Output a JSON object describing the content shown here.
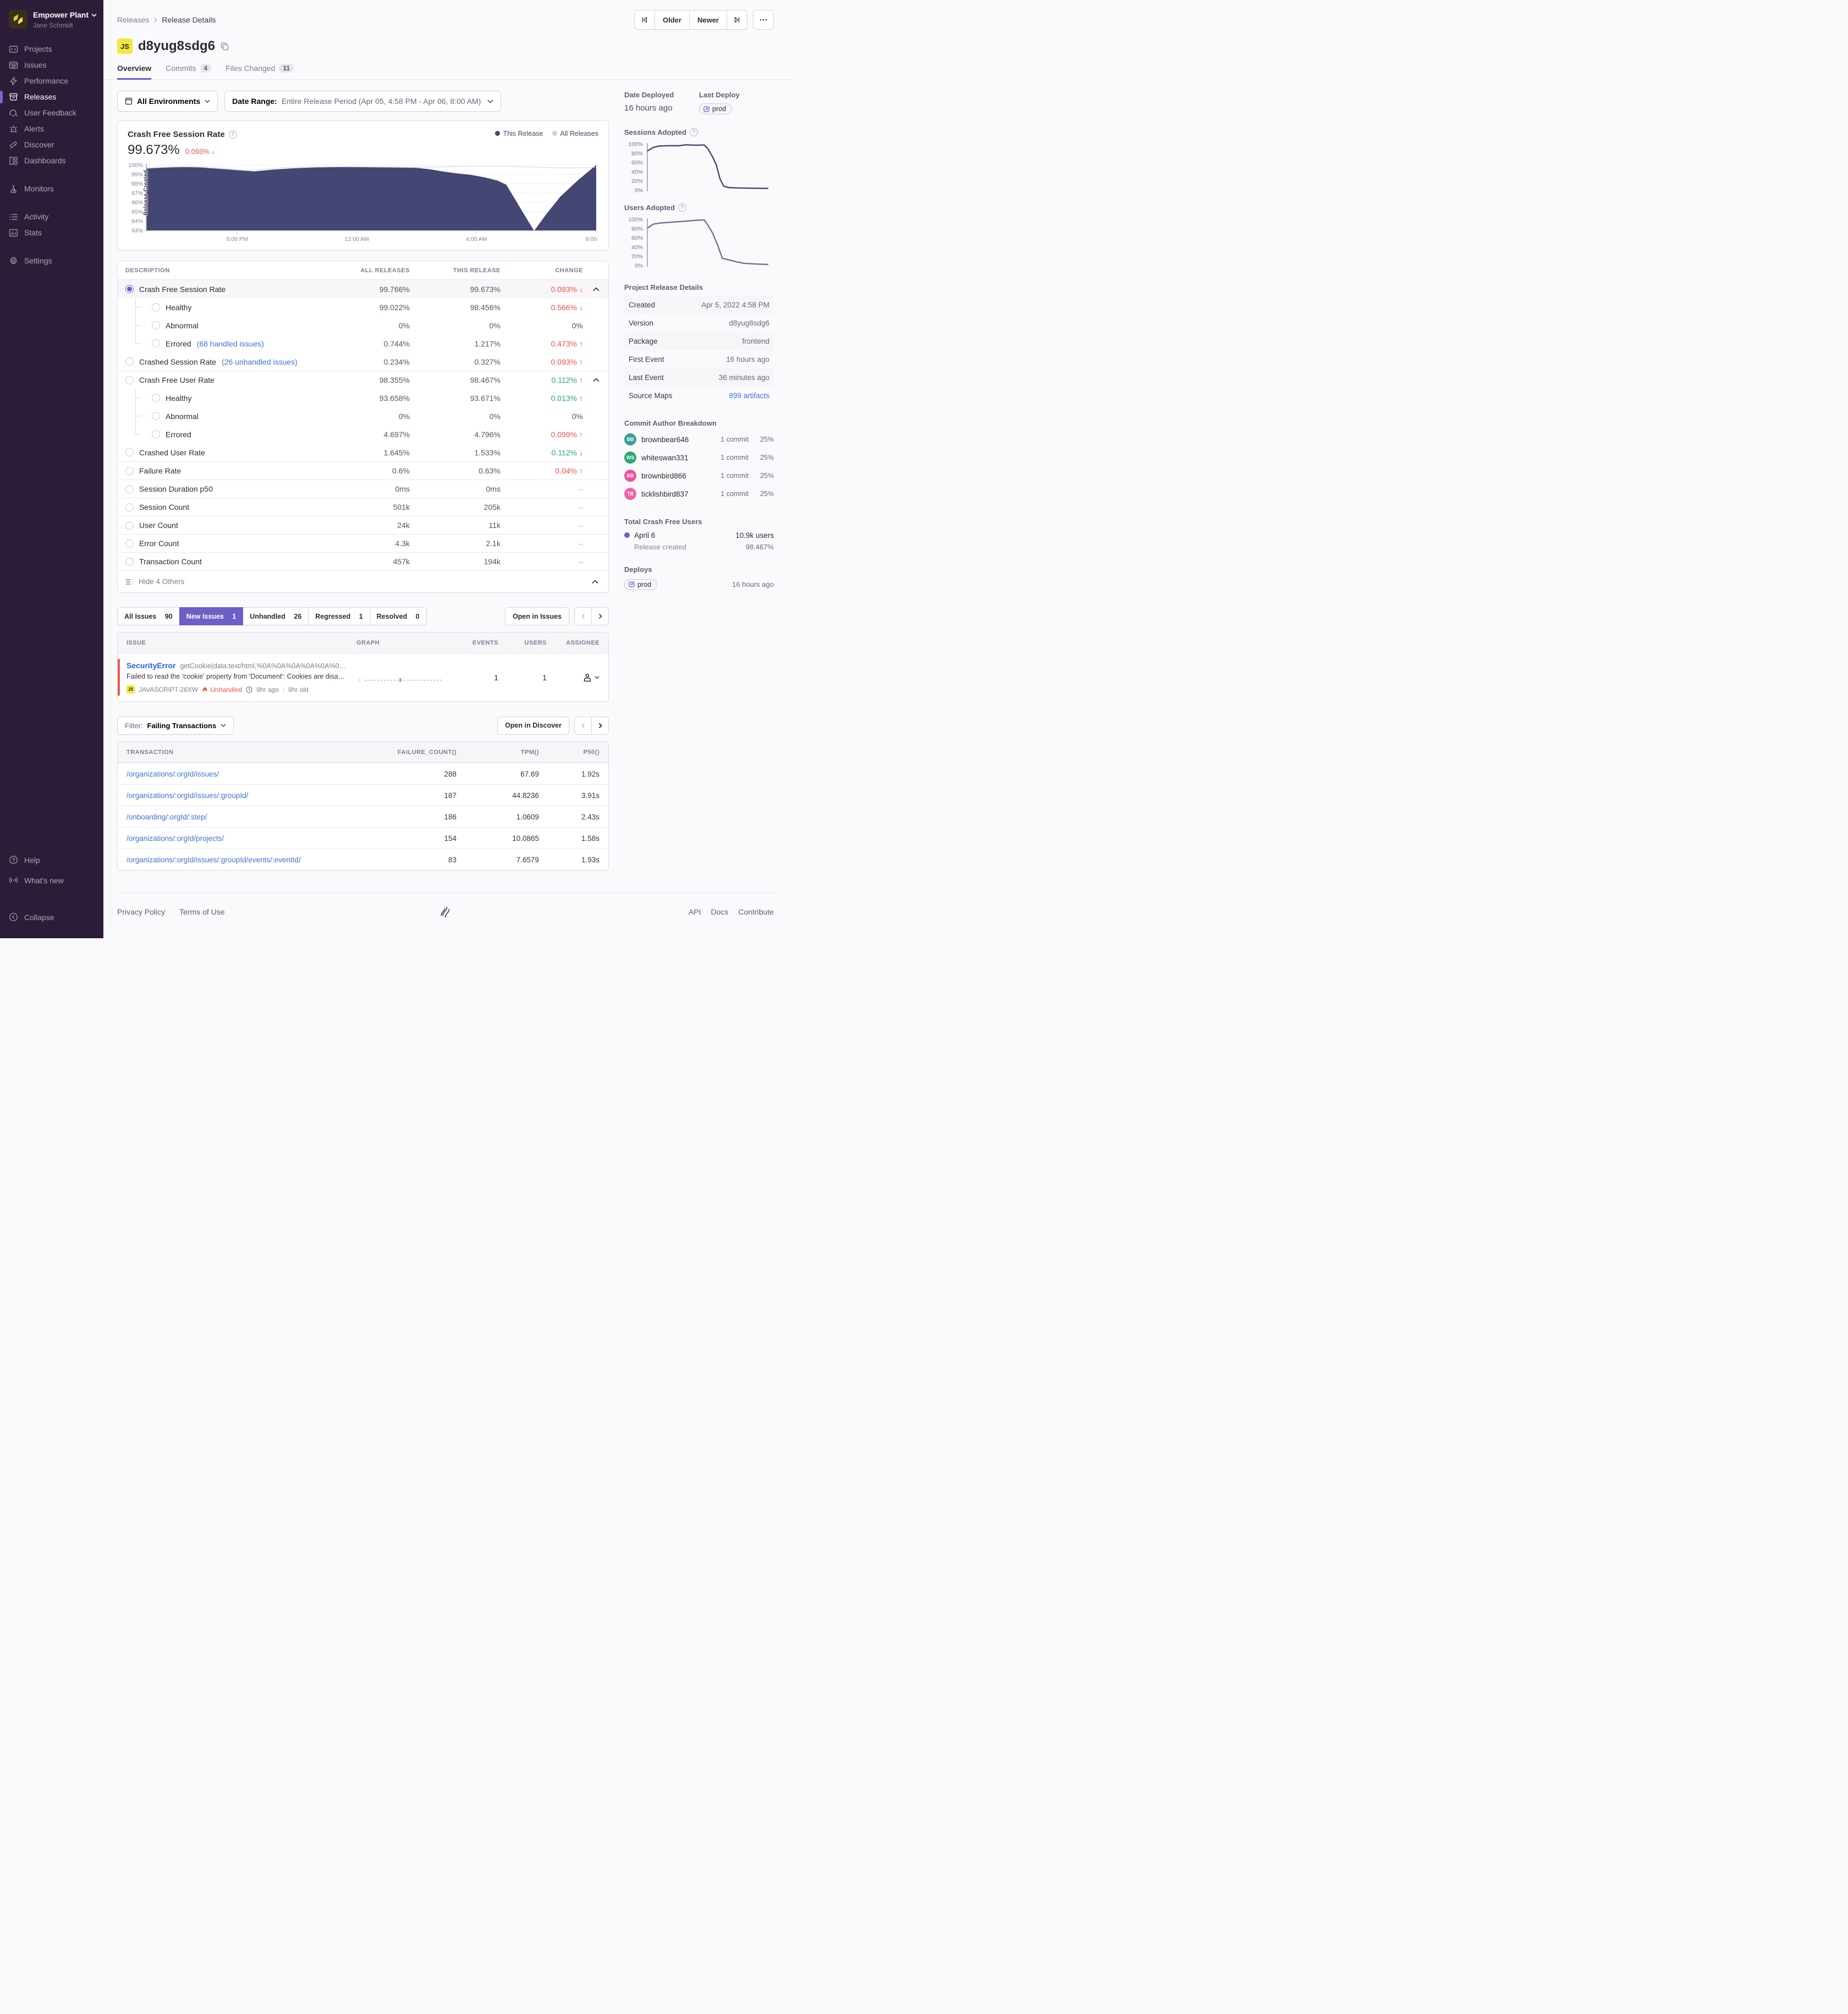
{
  "sidebar": {
    "org": "Empower Plant",
    "user": "Jane Schmidt",
    "nav1": [
      "Projects",
      "Issues",
      "Performance",
      "Releases",
      "User Feedback",
      "Alerts",
      "Discover",
      "Dashboards"
    ],
    "nav2": [
      "Monitors"
    ],
    "nav3": [
      "Activity",
      "Stats"
    ],
    "nav4": [
      "Settings"
    ],
    "bottom": [
      "Help",
      "What's new",
      "Collapse"
    ]
  },
  "header": {
    "breadcrumb1": "Releases",
    "breadcrumb2": "Release Details",
    "older": "Older",
    "newer": "Newer",
    "title": "d8yug8sdg6",
    "title_badge": "JS",
    "tabs": [
      {
        "label": "Overview"
      },
      {
        "label": "Commits",
        "count": "4"
      },
      {
        "label": "Files Changed",
        "count": "11"
      }
    ]
  },
  "filters": {
    "environments": "All Environments",
    "range_label": "Date Range:",
    "range_value": "Entire Release Period (Apr 05, 4:58 PM - Apr 06, 8:00 AM)"
  },
  "chart_card": {
    "title": "Crash Free Session Rate",
    "value": "99.673%",
    "change": "0.093%",
    "change_arrow": "↓",
    "legend1": "This Release",
    "legend2": "All Releases",
    "annotation": "Release Created"
  },
  "chart_data": [
    {
      "id": "main-chart",
      "type": "area",
      "title": "Crash Free Session Rate",
      "ylabel": "%",
      "ylim": [
        93,
        100
      ],
      "yticks": [
        100,
        99,
        98,
        97,
        96,
        95,
        94,
        93
      ],
      "xticks": [
        {
          "f": 0.202,
          "label": "8:00 PM"
        },
        {
          "f": 0.468,
          "label": "12:00 AM"
        },
        {
          "f": 0.734,
          "label": "4:00 AM"
        },
        {
          "f": 1.0,
          "label": "8:00 AM"
        }
      ],
      "legend_position": "top-right",
      "grid": true,
      "series": [
        {
          "name": "This Release",
          "style": "area",
          "color": "#444674",
          "points": [
            [
              0,
              99.62
            ],
            [
              0.04,
              99.72
            ],
            [
              0.08,
              99.78
            ],
            [
              0.12,
              99.74
            ],
            [
              0.16,
              99.6
            ],
            [
              0.2,
              99.45
            ],
            [
              0.24,
              99.32
            ],
            [
              0.28,
              99.5
            ],
            [
              0.33,
              99.65
            ],
            [
              0.38,
              99.74
            ],
            [
              0.44,
              99.78
            ],
            [
              0.5,
              99.76
            ],
            [
              0.56,
              99.73
            ],
            [
              0.6,
              99.7
            ],
            [
              0.63,
              99.55
            ],
            [
              0.66,
              99.3
            ],
            [
              0.69,
              99.1
            ],
            [
              0.72,
              98.95
            ],
            [
              0.75,
              98.7
            ],
            [
              0.78,
              98.35
            ],
            [
              0.8,
              97.9
            ],
            [
              0.82,
              96.3
            ],
            [
              0.845,
              94.3
            ],
            [
              0.862,
              92.95
            ],
            [
              0.89,
              94.8
            ],
            [
              0.92,
              96.6
            ],
            [
              0.96,
              98.4
            ],
            [
              1,
              100
            ]
          ]
        },
        {
          "name": "All Releases",
          "style": "dashed",
          "color": "#c9c2d6",
          "points": [
            [
              0,
              99.7
            ],
            [
              0.05,
              99.8
            ],
            [
              0.1,
              99.83
            ],
            [
              0.14,
              99.78
            ],
            [
              0.18,
              99.6
            ],
            [
              0.22,
              99.42
            ],
            [
              0.26,
              99.55
            ],
            [
              0.31,
              99.72
            ],
            [
              0.37,
              99.8
            ],
            [
              0.44,
              99.83
            ],
            [
              0.5,
              99.8
            ],
            [
              0.56,
              99.78
            ],
            [
              0.6,
              99.76
            ],
            [
              0.65,
              99.8
            ],
            [
              0.7,
              99.85
            ],
            [
              0.75,
              99.87
            ],
            [
              0.8,
              99.84
            ],
            [
              0.85,
              99.8
            ],
            [
              0.9,
              99.73
            ],
            [
              0.95,
              99.7
            ],
            [
              1,
              99.74
            ]
          ]
        }
      ]
    },
    {
      "id": "sessions-chart",
      "type": "line",
      "title": "Sessions Adopted",
      "ylim": [
        0,
        100
      ],
      "yticks": [
        100,
        80,
        60,
        40,
        20,
        0
      ],
      "grid": false,
      "series": [
        {
          "name": "Sessions Adopted",
          "style": "line",
          "color": "#444674",
          "points": [
            [
              0,
              85
            ],
            [
              0.05,
              93
            ],
            [
              0.1,
              96
            ],
            [
              0.18,
              96.5
            ],
            [
              0.26,
              96.5
            ],
            [
              0.32,
              98.5
            ],
            [
              0.36,
              98
            ],
            [
              0.4,
              97.5
            ],
            [
              0.45,
              98
            ],
            [
              0.47,
              98
            ],
            [
              0.5,
              90
            ],
            [
              0.54,
              72
            ],
            [
              0.57,
              55
            ],
            [
              0.6,
              25
            ],
            [
              0.63,
              9
            ],
            [
              0.67,
              6
            ],
            [
              0.75,
              5
            ],
            [
              0.85,
              4.5
            ],
            [
              1,
              4
            ]
          ]
        }
      ]
    },
    {
      "id": "users-chart",
      "type": "line",
      "title": "Users Adopted",
      "ylim": [
        0,
        100
      ],
      "yticks": [
        100,
        80,
        60,
        40,
        20,
        0
      ],
      "grid": false,
      "series": [
        {
          "name": "Users Adopted",
          "style": "line",
          "color": "#7d6a93",
          "points": [
            [
              0,
              81
            ],
            [
              0.05,
              90
            ],
            [
              0.1,
              92
            ],
            [
              0.2,
              94
            ],
            [
              0.3,
              96
            ],
            [
              0.4,
              98
            ],
            [
              0.47,
              99
            ],
            [
              0.5,
              88
            ],
            [
              0.54,
              70
            ],
            [
              0.58,
              45
            ],
            [
              0.62,
              16
            ],
            [
              0.68,
              12
            ],
            [
              0.74,
              8
            ],
            [
              0.8,
              5
            ],
            [
              0.9,
              3.5
            ],
            [
              1,
              2.5
            ]
          ]
        }
      ]
    },
    {
      "id": "issue-sparkline",
      "type": "sparkline",
      "label": "1",
      "points": [
        [
          0,
          0
        ],
        [
          0.45,
          1
        ],
        [
          1,
          0
        ]
      ]
    }
  ],
  "metrics": {
    "h": {
      "desc": "DESCRIPTION",
      "all": "ALL RELEASES",
      "this": "THIS RELEASE",
      "change": "CHANGE"
    },
    "rows": [
      {
        "label": "Crash Free Session Rate",
        "all": "99.766%",
        "this": "99.673%",
        "change": "0.093%",
        "arrow": "↓"
      },
      {
        "label": "Healthy",
        "all": "99.022%",
        "this": "98.456%",
        "change": "0.566%",
        "arrow": "↓"
      },
      {
        "label": "Abnormal",
        "all": "0%",
        "this": "0%",
        "change": "0%",
        "arrow": ""
      },
      {
        "label": "Errored",
        "link": "(68 handled issues)",
        "all": "0.744%",
        "this": "1.217%",
        "change": "0.473%",
        "arrow": "↑"
      },
      {
        "label": "Crashed Session Rate",
        "link": "(26 unhandled issues)",
        "all": "0.234%",
        "this": "0.327%",
        "change": "0.093%",
        "arrow": "↑"
      },
      {
        "label": "Crash Free User Rate",
        "all": "98.355%",
        "this": "98.467%",
        "change": "0.112%",
        "arrow": "↑"
      },
      {
        "label": "Healthy",
        "all": "93.658%",
        "this": "93.671%",
        "change": "0.013%",
        "arrow": "↑"
      },
      {
        "label": "Abnormal",
        "all": "0%",
        "this": "0%",
        "change": "0%",
        "arrow": ""
      },
      {
        "label": "Errored",
        "all": "4.697%",
        "this": "4.796%",
        "change": "0.099%",
        "arrow": "↑"
      },
      {
        "label": "Crashed User Rate",
        "all": "1.645%",
        "this": "1.533%",
        "change": "0.112%",
        "arrow": "↓"
      },
      {
        "label": "Failure Rate",
        "all": "0.6%",
        "this": "0.63%",
        "change": "0.04%",
        "arrow": "↑"
      },
      {
        "label": "Session Duration p50",
        "all": "0ms",
        "this": "0ms",
        "change": "–",
        "arrow": ""
      },
      {
        "label": "Session Count",
        "all": "501k",
        "this": "205k",
        "change": "–",
        "arrow": ""
      },
      {
        "label": "User Count",
        "all": "24k",
        "this": "11k",
        "change": "–",
        "arrow": ""
      },
      {
        "label": "Error Count",
        "all": "4.3k",
        "this": "2.1k",
        "change": "–",
        "arrow": ""
      },
      {
        "label": "Transaction Count",
        "all": "457k",
        "this": "194k",
        "change": "–",
        "arrow": ""
      }
    ],
    "hide": "Hide 4 Others"
  },
  "issues": {
    "tabs": [
      {
        "label": "All Issues",
        "count": "90"
      },
      {
        "label": "New Issues",
        "count": "1"
      },
      {
        "label": "Unhandled",
        "count": "26"
      },
      {
        "label": "Regressed",
        "count": "1"
      },
      {
        "label": "Resolved",
        "count": "0"
      }
    ],
    "open": "Open in Issues",
    "h": {
      "issue": "ISSUE",
      "graph": "GRAPH",
      "events": "EVENTS",
      "users": "USERS",
      "assignee": "ASSIGNEE"
    },
    "row": {
      "type": "SecurityError",
      "culprit": "getCookie(data:text/html,%0A%0A%0A%0A%0A%0…",
      "message": "Failed to read the 'cookie' property from 'Document': Cookies are disa…",
      "badge": "JS",
      "short_id": "JAVASCRIPT-26XW",
      "unhandled": "Unhandled",
      "age": "8hr ago",
      "old": "8hr old",
      "graph_label": "1",
      "events": "1",
      "users": "1"
    }
  },
  "transactions": {
    "filter_label": "Filter:",
    "filter_value": "Failing Transactions",
    "open": "Open in Discover",
    "h": {
      "t": "TRANSACTION",
      "f": "FAILURE_COUNT()",
      "tpm": "TPM()",
      "p50": "P50()"
    },
    "rows": [
      {
        "path": "/organizations/:orgId/issues/",
        "failures": "288",
        "tpm": "67.69",
        "p50": "1.92s"
      },
      {
        "path": "/organizations/:orgId/issues/:groupId/",
        "failures": "187",
        "tpm": "44.8236",
        "p50": "3.91s"
      },
      {
        "path": "/onboarding/:orgId/:step/",
        "failures": "186",
        "tpm": "1.0609",
        "p50": "2.43s"
      },
      {
        "path": "/organizations/:orgId/projects/",
        "failures": "154",
        "tpm": "10.0865",
        "p50": "1.58s"
      },
      {
        "path": "/organizations/:orgId/issues/:groupId/events/:eventId/",
        "failures": "83",
        "tpm": "7.6579",
        "p50": "1.93s"
      }
    ]
  },
  "side": {
    "deployed_label": "Date Deployed",
    "deployed": "16 hours ago",
    "last_deploy_label": "Last Deploy",
    "env": "prod",
    "sessions_title": "Sessions Adopted",
    "users_title": "Users Adopted",
    "details_title": "Project Release Details",
    "details": [
      {
        "k": "Created",
        "v": "Apr 5, 2022 4:58 PM"
      },
      {
        "k": "Version",
        "v": "d8yug8sdg6"
      },
      {
        "k": "Package",
        "v": "frontend"
      },
      {
        "k": "First Event",
        "v": "16 hours ago"
      },
      {
        "k": "Last Event",
        "v": "36 minutes ago"
      },
      {
        "k": "Source Maps",
        "v": "899 artifacts"
      }
    ],
    "commit_title": "Commit Author Breakdown",
    "authors": [
      {
        "initials": "BB",
        "color": "#3a9e93",
        "name": "brownbear646",
        "commits": "1 commit",
        "pct": "25%"
      },
      {
        "initials": "WS",
        "color": "#2fa66e",
        "name": "whiteswan331",
        "commits": "1 commit",
        "pct": "25%"
      },
      {
        "initials": "BB",
        "color": "#ef4fa0",
        "name": "brownbird866",
        "commits": "1 commit",
        "pct": "25%"
      },
      {
        "initials": "TB",
        "color": "#f35fa8",
        "name": "ticklishbird837",
        "commits": "1 commit",
        "pct": "25%"
      }
    ],
    "cfu_title": "Total Crash Free Users",
    "cfu_date": "April 6",
    "cfu_users": "10.9k users",
    "cfu_sub": "Release created",
    "cfu_pct": "98.467%",
    "deploys_title": "Deploys",
    "deploy_env": "prod",
    "deploy_time": "16 hours ago"
  },
  "footer": {
    "l1": "Privacy Policy",
    "l2": "Terms of Use",
    "r1": "API",
    "r2": "Docs",
    "r3": "Contribute"
  },
  "colors": {
    "accent": "#6c5fc7",
    "chart_navy": "#444674",
    "all_releases": "#c9c2d6",
    "bad": "#ef5349",
    "good": "#2ba38b",
    "link": "#3c74d9",
    "js_yellow": "#f2e73d"
  }
}
